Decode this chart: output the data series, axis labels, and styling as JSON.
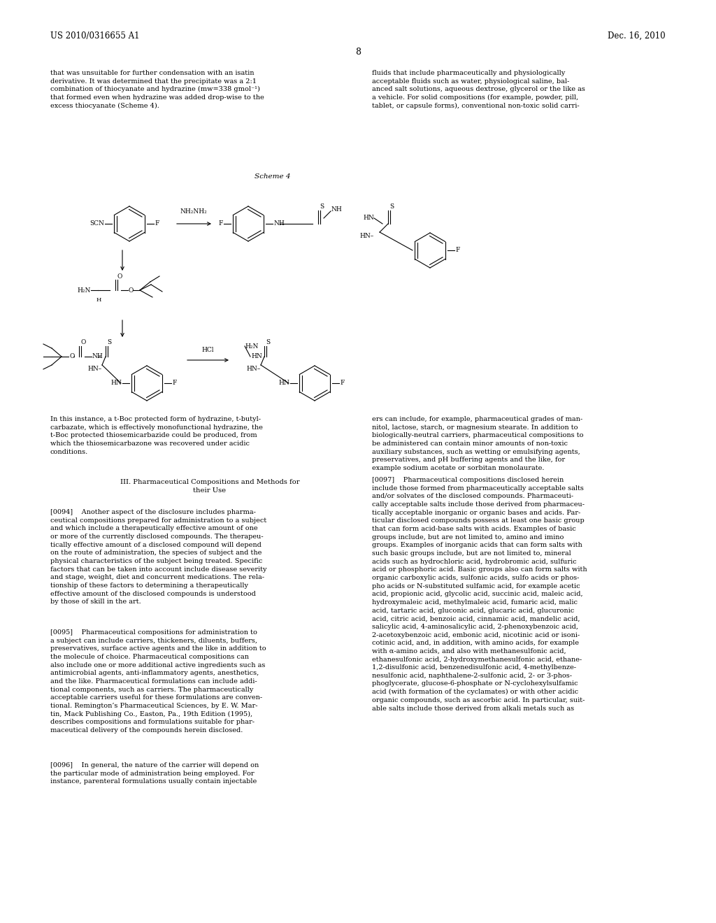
{
  "page_number": "8",
  "header_left": "US 2010/0316655 A1",
  "header_right": "Dec. 16, 2010",
  "background_color": "#ffffff",
  "text_color": "#000000",
  "scheme_label": "Scheme 4",
  "left_col_top": "that was unsuitable for further condensation with an isatin\nderivative. It was determined that the precipitate was a 2:1\ncombination of thiocyanate and hydrazine (mw=338 gmol⁻¹)\nthat formed even when hydrazine was added drop-wise to the\nexcess thiocyanate (Scheme 4).",
  "right_col_top": "fluids that include pharmaceutically and physiologically\nacceptable fluids such as water, physiological saline, bal-\nanced salt solutions, aqueous dextrose, glycerol or the like as\na vehicle. For solid compositions (for example, powder, pill,\ntablet, or capsule forms), conventional non-toxic solid carri-",
  "body_left_1": "In this instance, a t-Boc protected form of hydrazine, t-butyl-\ncarbazate, which is effectively monofunctional hydrazine, the\nt-Boc protected thiosemicarbazide could be produced, from\nwhich the thiosemicarbazone was recovered under acidic\nconditions.",
  "section_header": "III. Pharmaceutical Compositions and Methods for\ntheir Use",
  "para_0094": "[0094]    Another aspect of the disclosure includes pharma-\nceutical compositions prepared for administration to a subject\nand which include a therapeutically effective amount of one\nor more of the currently disclosed compounds. The therapeu-\ntically effective amount of a disclosed compound will depend\non the route of administration, the species of subject and the\nphysical characteristics of the subject being treated. Specific\nfactors that can be taken into account include disease severity\nand stage, weight, diet and concurrent medications. The rela-\ntionship of these factors to determining a therapeutically\neffective amount of the disclosed compounds is understood\nby those of skill in the art.",
  "para_0095": "[0095]    Pharmaceutical compositions for administration to\na subject can include carriers, thickeners, diluents, buffers,\npreservatives, surface active agents and the like in addition to\nthe molecule of choice. Pharmaceutical compositions can\nalso include one or more additional active ingredients such as\nantimicrobial agents, anti-inflammatory agents, anesthetics,\nand the like. Pharmaceutical formulations can include addi-\ntional components, such as carriers. The pharmaceutically\nacceptable carriers useful for these formulations are conven-\ntional. Remington’s Pharmaceutical Sciences, by E. W. Mar-\ntin, Mack Publishing Co., Easton, Pa., 19th Edition (1995),\ndescribes compositions and formulations suitable for phar-\nmaceutical delivery of the compounds herein disclosed.",
  "para_0096": "[0096]    In general, the nature of the carrier will depend on\nthe particular mode of administration being employed. For\ninstance, parenteral formulations usually contain injectable",
  "right_col_0097": "[0097]    Pharmaceutical compositions disclosed herein\ninclude those formed from pharmaceutically acceptable salts\nand/or solvates of the disclosed compounds. Pharmaceuti-\ncally acceptable salts include those derived from pharmaceu-\ntically acceptable inorganic or organic bases and acids. Par-\nticular disclosed compounds possess at least one basic group\nthat can form acid-base salts with acids. Examples of basic\ngroups include, but are not limited to, amino and imino\ngroups. Examples of inorganic acids that can form salts with\nsuch basic groups include, but are not limited to, mineral\nacids such as hydrochloric acid, hydrobromic acid, sulfuric\nacid or phosphoric acid. Basic groups also can form salts with\norganic carboxylic acids, sulfonic acids, sulfo acids or phos-\npho acids or N-substituted sulfamic acid, for example acetic\nacid, propionic acid, glycolic acid, succinic acid, maleic acid,\nhydroxymaleic acid, methylmaleic acid, fumaric acid, malic\nacid, tartaric acid, gluconic acid, glucaric acid, glucuronic\nacid, citric acid, benzoic acid, cinnamic acid, mandelic acid,\nsalicylic acid, 4-aminosalicylic acid, 2-phenoxybenzoic acid,\n2-acetoxybenzoic acid, embonic acid, nicotinic acid or isoni-\ncotinic acid, and, in addition, with amino acids, for example\nwith α-amino acids, and also with methanesulfonic acid,\nethanesulfonic acid, 2-hydroxymethanesulfonic acid, ethane-\n1,2-disulfonic acid, benzenedisulfonic acid, 4-methylbenze-\nnesulfonic acid, naphthalene-2-sulfonic acid, 2- or 3-phos-\nphoglycerate, glucose-6-phosphate or N-cyclohexylsulfamic\nacid (with formation of the cyclamates) or with other acidic\norganic compounds, such as ascorbic acid. In particular, suit-\nable salts include those derived from alkali metals such as",
  "right_col_top_continued": "ers can include, for example, pharmaceutical grades of man-\nnitol, lactose, starch, or magnesium stearate. In addition to\nbiologically-neutral carriers, pharmaceutical compositions to\nbe administered can contain minor amounts of non-toxic\nauxiliary substances, such as wetting or emulsifying agents,\npreservatives, and pH buffering agents and the like, for\nexample sodium acetate or sorbitan monolaurate."
}
